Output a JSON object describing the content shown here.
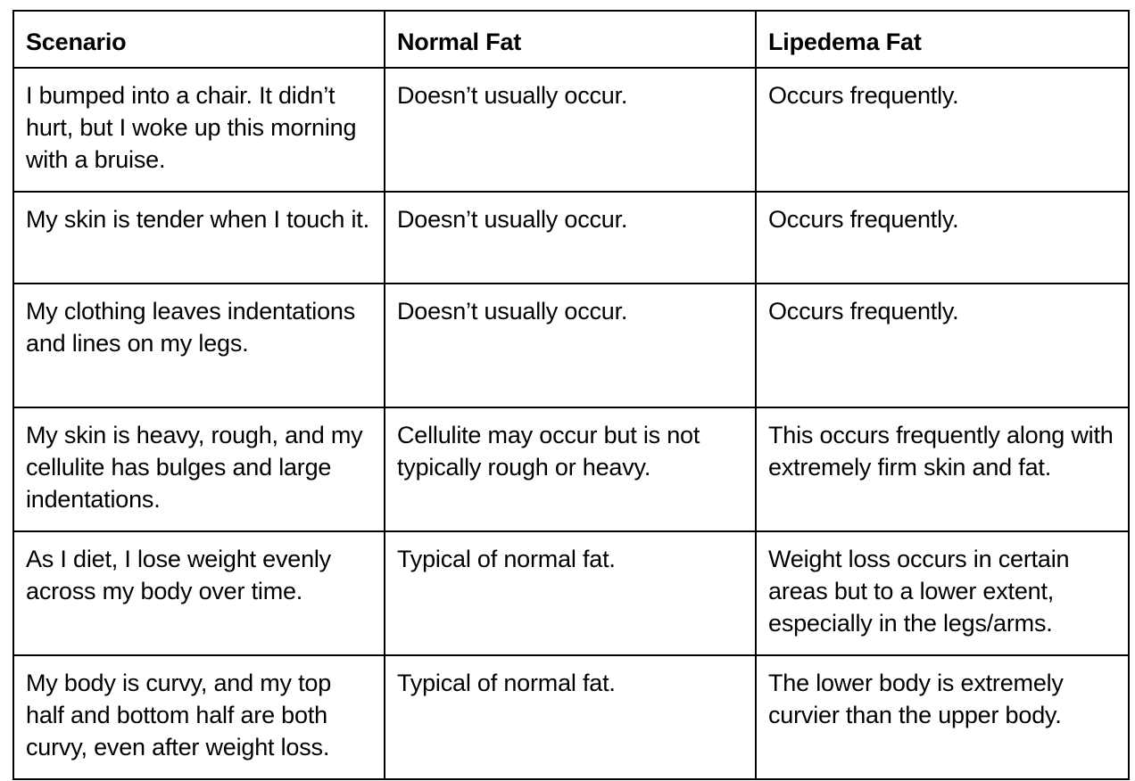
{
  "table": {
    "headers": [
      "Scenario",
      "Normal Fat",
      "Lipedema Fat"
    ],
    "rows": [
      [
        "I bumped into a chair. It didn’t hurt, but I woke up this morning with a bruise.",
        "Doesn’t usually occur.",
        "Occurs frequently."
      ],
      [
        "My skin is tender when I touch it.",
        "Doesn’t usually occur.",
        "Occurs frequently."
      ],
      [
        "My clothing leaves indentations and lines on my legs.",
        "Doesn’t usually occur.",
        "Occurs frequently."
      ],
      [
        "My skin is heavy, rough, and my cellulite has bulges and large indentations.",
        "Cellulite may occur but is not typically rough or heavy.",
        "This occurs frequently along with extremely firm skin and fat."
      ],
      [
        "As I diet, I lose weight evenly across my body over time.",
        "Typical of normal fat.",
        "Weight loss occurs in certain areas but to a lower extent, especially in the legs/arms."
      ],
      [
        "My body is curvy, and my top half and bottom half are both curvy, even after weight loss.",
        "Typical of normal fat.",
        "The lower body is extremely curvier than the upper body."
      ]
    ]
  }
}
